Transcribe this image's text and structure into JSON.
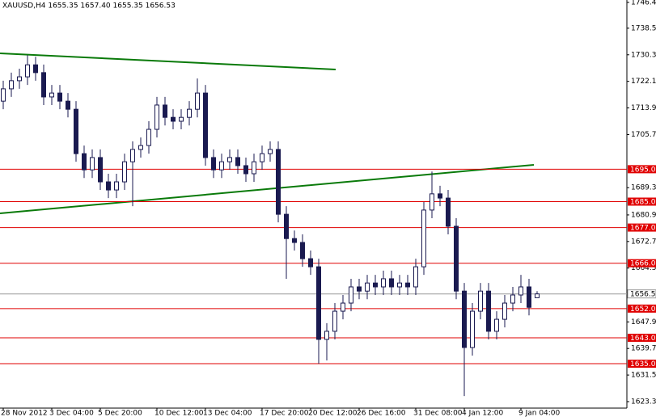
{
  "chart_data": {
    "type": "candlestick",
    "title": "XAUUSD,H4  1655.35 1657.40 1655.35 1656.53",
    "categories": [
      "28 Nov 2012",
      null,
      null,
      null,
      null,
      null,
      "3 Dec 04:00",
      null,
      null,
      null,
      null,
      null,
      "5 Dec 20:00",
      null,
      null,
      null,
      null,
      null,
      null,
      "10 Dec 12:00",
      null,
      null,
      null,
      null,
      null,
      "13 Dec 04:00",
      null,
      null,
      null,
      null,
      null,
      null,
      "17 Dec 20:00",
      null,
      null,
      null,
      null,
      null,
      "20 Dec 12:00",
      null,
      null,
      null,
      null,
      null,
      "26 Dec 16:00",
      null,
      null,
      null,
      null,
      null,
      null,
      "31 Dec 08:00",
      null,
      null,
      null,
      null,
      null,
      "4 Jan 12:00",
      null,
      null,
      null,
      null,
      null,
      null,
      "9 Jan 04:00",
      null,
      null
    ],
    "open": [
      1716.0,
      1719.8,
      1722.3,
      1723.5,
      1727.2,
      1724.8,
      1717.3,
      1718.5,
      1716.0,
      1713.5,
      1699.8,
      1694.8,
      1698.6,
      1691.1,
      1688.6,
      1691.1,
      1697.3,
      1701.1,
      1702.3,
      1707.3,
      1714.8,
      1711.0,
      1709.8,
      1711.0,
      1713.5,
      1718.5,
      1698.6,
      1694.8,
      1697.3,
      1698.6,
      1696.1,
      1693.6,
      1697.3,
      1699.8,
      1701.1,
      1681.1,
      1673.6,
      1672.4,
      1667.4,
      1664.9,
      1642.5,
      1645.0,
      1651.2,
      1653.7,
      1658.7,
      1657.4,
      1659.9,
      1658.7,
      1661.2,
      1658.7,
      1659.9,
      1658.7,
      1664.9,
      1682.4,
      1687.4,
      1686.1,
      1677.4,
      1657.4,
      1640.0,
      1651.2,
      1657.4,
      1645.0,
      1648.7,
      1653.7,
      1656.2,
      1658.7,
      1655.35
    ],
    "high": [
      1722.3,
      1724.8,
      1726.0,
      1730.2,
      1729.7,
      1727.3,
      1721.0,
      1721.0,
      1718.5,
      1716.0,
      1702.3,
      1701.1,
      1701.1,
      1693.6,
      1693.6,
      1699.8,
      1703.6,
      1704.8,
      1709.8,
      1717.3,
      1717.3,
      1713.5,
      1713.5,
      1716.0,
      1723.0,
      1721.0,
      1701.1,
      1699.8,
      1701.1,
      1701.1,
      1698.6,
      1699.8,
      1702.3,
      1703.6,
      1703.6,
      1683.6,
      1676.1,
      1674.9,
      1669.9,
      1667.4,
      1647.5,
      1653.7,
      1656.2,
      1661.2,
      1661.2,
      1662.4,
      1662.4,
      1663.7,
      1663.7,
      1662.4,
      1662.4,
      1667.4,
      1684.9,
      1694.3,
      1689.9,
      1688.6,
      1679.9,
      1659.9,
      1653.7,
      1659.9,
      1659.9,
      1651.2,
      1656.2,
      1658.7,
      1662.4,
      1661.2,
      1657.4
    ],
    "low": [
      1713.5,
      1717.3,
      1719.8,
      1721.0,
      1722.3,
      1714.8,
      1714.8,
      1713.5,
      1711.0,
      1697.3,
      1692.3,
      1692.3,
      1688.6,
      1686.1,
      1686.1,
      1688.6,
      1683.6,
      1698.6,
      1699.8,
      1704.8,
      1708.5,
      1707.3,
      1707.3,
      1708.5,
      1711.0,
      1696.1,
      1692.3,
      1692.3,
      1694.8,
      1693.6,
      1691.1,
      1691.1,
      1694.8,
      1697.3,
      1678.6,
      1661.2,
      1669.9,
      1664.9,
      1662.4,
      1635.0,
      1636.0,
      1642.5,
      1648.7,
      1651.2,
      1654.9,
      1654.9,
      1656.2,
      1656.2,
      1656.2,
      1656.2,
      1656.2,
      1656.2,
      1662.4,
      1679.9,
      1683.6,
      1674.9,
      1654.9,
      1625.0,
      1637.5,
      1648.7,
      1642.5,
      1642.5,
      1646.2,
      1651.2,
      1653.7,
      1649.9,
      1655.35
    ],
    "close": [
      1719.8,
      1722.3,
      1723.5,
      1727.2,
      1724.8,
      1717.3,
      1718.5,
      1716.0,
      1713.5,
      1699.8,
      1694.8,
      1698.6,
      1691.1,
      1688.6,
      1691.1,
      1697.3,
      1701.1,
      1702.3,
      1707.3,
      1714.8,
      1711.0,
      1709.8,
      1711.0,
      1713.5,
      1718.5,
      1698.6,
      1694.8,
      1697.3,
      1698.6,
      1696.1,
      1693.6,
      1697.3,
      1699.8,
      1701.1,
      1681.1,
      1673.6,
      1672.4,
      1667.4,
      1664.9,
      1642.5,
      1645.0,
      1651.2,
      1653.7,
      1658.7,
      1657.4,
      1659.9,
      1658.7,
      1661.2,
      1658.7,
      1659.9,
      1658.7,
      1664.9,
      1682.4,
      1687.4,
      1686.1,
      1677.4,
      1657.4,
      1640.0,
      1651.2,
      1657.4,
      1645.0,
      1648.7,
      1653.7,
      1656.2,
      1658.7,
      1652.4,
      1656.53
    ],
    "color": "#1a1a50",
    "ylim": [
      1621.3,
      1747.2
    ],
    "yticks": [
      1746.45,
      {
        "value": 1738.5,
        "label": "1738.50"
      },
      {
        "value": 1730.3,
        "label": "1730.30"
      },
      {
        "value": 1722.1,
        "label": "1722.10"
      },
      {
        "value": 1713.9,
        "label": "1713.90"
      },
      {
        "value": 1705.7,
        "label": "1705.70"
      },
      {
        "value": 1689.3,
        "label": "1689.30"
      },
      {
        "value": 1680.9,
        "label": "1680.90"
      },
      {
        "value": 1672.7,
        "label": "1672.70"
      },
      {
        "value": 1664.5,
        "label": "1664.50"
      },
      {
        "value": 1647.9,
        "label": "1647.90"
      },
      {
        "value": 1639.7,
        "label": "1639.70"
      },
      {
        "value": 1631.5,
        "label": "1631.50"
      },
      {
        "value": 1623.3,
        "label": "1623.30"
      }
    ],
    "levels": [
      {
        "value": 1695,
        "label": "1695.00"
      },
      {
        "value": 1685,
        "label": "1685.00"
      },
      {
        "value": 1677,
        "label": "1677.00"
      },
      {
        "value": 1666,
        "label": "1666.00"
      },
      {
        "value": 1652,
        "label": "1652.00"
      },
      {
        "value": 1643,
        "label": "1643.00"
      },
      {
        "value": 1635,
        "label": "1635.00"
      }
    ],
    "level_color": "#e00000",
    "last_price": 1656.53,
    "grid": false
  }
}
